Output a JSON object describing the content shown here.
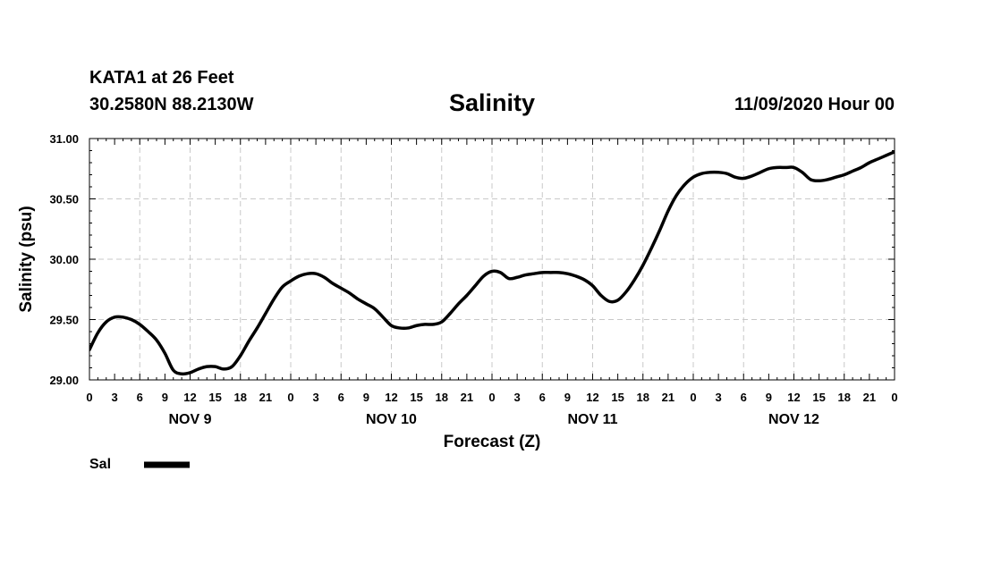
{
  "header": {
    "station": "KATA1 at 26 Feet",
    "coords": "30.2580N 88.2130W",
    "title": "Salinity",
    "issued": "11/09/2020 Hour 00"
  },
  "chart_data": {
    "type": "line",
    "title": "Salinity",
    "xlabel": "Forecast (Z)",
    "ylabel": "Salinity (psu)",
    "ylim": [
      29.0,
      31.0
    ],
    "xlim_hours": [
      0,
      96
    ],
    "y_ticks": [
      "29.00",
      "29.50",
      "30.00",
      "30.50",
      "31.00"
    ],
    "y_tick_values": [
      29.0,
      29.5,
      30.0,
      30.5,
      31.0
    ],
    "x_tick_labels": [
      "0",
      "3",
      "6",
      "9",
      "12",
      "15",
      "18",
      "21",
      "0",
      "3",
      "6",
      "9",
      "12",
      "15",
      "18",
      "21",
      "0",
      "3",
      "6",
      "9",
      "12",
      "15",
      "18",
      "21",
      "0",
      "3",
      "6",
      "9",
      "12",
      "15",
      "18",
      "21",
      "0"
    ],
    "day_labels": [
      {
        "label": "NOV 9",
        "center_hour": 12
      },
      {
        "label": "NOV 10",
        "center_hour": 36
      },
      {
        "label": "NOV 11",
        "center_hour": 60
      },
      {
        "label": "NOV 12",
        "center_hour": 84
      }
    ],
    "grid": true,
    "legend": {
      "position": "bottom-left",
      "label": "Sal"
    },
    "series": [
      {
        "name": "Sal",
        "color": "#000000",
        "hours": [
          0,
          1,
          2,
          3,
          4,
          5,
          6,
          7,
          8,
          9,
          10,
          11,
          12,
          13,
          14,
          15,
          16,
          17,
          18,
          19,
          20,
          21,
          22,
          23,
          24,
          25,
          26,
          27,
          28,
          29,
          30,
          31,
          32,
          33,
          34,
          35,
          36,
          37,
          38,
          39,
          40,
          41,
          42,
          43,
          44,
          45,
          46,
          47,
          48,
          49,
          50,
          51,
          52,
          53,
          54,
          55,
          56,
          57,
          58,
          59,
          60,
          61,
          62,
          63,
          64,
          65,
          66,
          67,
          68,
          69,
          70,
          71,
          72,
          73,
          74,
          75,
          76,
          77,
          78,
          79,
          80,
          81,
          82,
          83,
          84,
          85,
          86,
          87,
          88,
          89,
          90,
          91,
          92,
          93,
          94,
          95,
          96
        ],
        "values": [
          29.25,
          29.39,
          29.48,
          29.52,
          29.52,
          29.5,
          29.46,
          29.4,
          29.33,
          29.22,
          29.08,
          29.05,
          29.06,
          29.09,
          29.11,
          29.11,
          29.09,
          29.11,
          29.2,
          29.32,
          29.43,
          29.55,
          29.67,
          29.77,
          29.82,
          29.86,
          29.88,
          29.88,
          29.85,
          29.8,
          29.76,
          29.72,
          29.67,
          29.63,
          29.59,
          29.52,
          29.45,
          29.43,
          29.43,
          29.45,
          29.46,
          29.46,
          29.48,
          29.55,
          29.63,
          29.7,
          29.78,
          29.86,
          29.9,
          29.89,
          29.84,
          29.85,
          29.87,
          29.88,
          29.89,
          29.89,
          29.89,
          29.88,
          29.86,
          29.83,
          29.78,
          29.7,
          29.65,
          29.66,
          29.73,
          29.83,
          29.95,
          30.09,
          30.24,
          30.4,
          30.53,
          30.62,
          30.68,
          30.71,
          30.72,
          30.72,
          30.71,
          30.68,
          30.67,
          30.69,
          30.72,
          30.75,
          30.76,
          30.76,
          30.76,
          30.72,
          30.66,
          30.65,
          30.66,
          30.68,
          30.7,
          30.73,
          30.76,
          30.8,
          30.83,
          30.86,
          30.89
        ]
      }
    ]
  }
}
